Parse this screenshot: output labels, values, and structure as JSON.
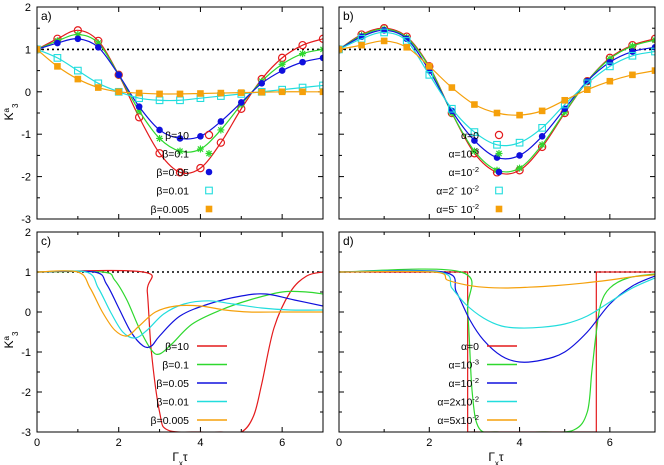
{
  "figure": {
    "ylabel_main": "K",
    "ylabel_sup": "a",
    "ylabel_sub": "3",
    "xlabel_main": "Γ",
    "xlabel_sub": "x",
    "xlabel_tail": "τ"
  },
  "chart_data": [
    {
      "panel": "a)",
      "type": "line+scatter",
      "xlim": [
        0,
        7
      ],
      "ylim": [
        -3,
        2
      ],
      "xticks": [],
      "yticks": [
        "-3",
        "-2",
        "-1",
        "0",
        "1",
        "2"
      ],
      "reference_line": 1,
      "legend_position": "bottom-center",
      "series": [
        {
          "name": "β=10",
          "color": "#e41a1c",
          "marker": "circle-open",
          "x": [
            0,
            0.5,
            1,
            1.5,
            2,
            2.5,
            3,
            3.5,
            4,
            4.5,
            5,
            5.5,
            6,
            6.5,
            7
          ],
          "y": [
            1.0,
            1.25,
            1.45,
            1.2,
            0.4,
            -0.6,
            -1.45,
            -1.9,
            -1.8,
            -1.2,
            -0.4,
            0.3,
            0.8,
            1.1,
            1.25
          ]
        },
        {
          "name": "β=0.1",
          "color": "#2ed82e",
          "marker": "star",
          "x": [
            0,
            0.5,
            1,
            1.5,
            2,
            2.5,
            3,
            3.5,
            4,
            4.5,
            5,
            5.5,
            6,
            6.5,
            7
          ],
          "y": [
            1.0,
            1.2,
            1.35,
            1.15,
            0.4,
            -0.45,
            -1.1,
            -1.4,
            -1.35,
            -0.9,
            -0.3,
            0.25,
            0.65,
            0.9,
            1.0
          ]
        },
        {
          "name": "β=0.05",
          "color": "#1010dd",
          "marker": "circle-filled",
          "x": [
            0,
            0.5,
            1,
            1.5,
            2,
            2.5,
            3,
            3.5,
            4,
            4.5,
            5,
            5.5,
            6,
            6.5,
            7
          ],
          "y": [
            1.0,
            1.15,
            1.25,
            1.05,
            0.4,
            -0.35,
            -0.9,
            -1.1,
            -1.05,
            -0.7,
            -0.25,
            0.2,
            0.5,
            0.7,
            0.8
          ]
        },
        {
          "name": "β=0.01",
          "color": "#22dddd",
          "marker": "square-open",
          "x": [
            0,
            0.5,
            1,
            1.5,
            2,
            2.5,
            3,
            3.5,
            4,
            4.5,
            5,
            5.5,
            6,
            6.5,
            7
          ],
          "y": [
            1.0,
            0.8,
            0.5,
            0.2,
            0.0,
            -0.15,
            -0.2,
            -0.2,
            -0.15,
            -0.1,
            -0.05,
            0.0,
            0.05,
            0.1,
            0.15
          ]
        },
        {
          "name": "β=0.005",
          "color": "#f5a00a",
          "marker": "square-filled",
          "x": [
            0,
            0.5,
            1,
            1.5,
            2,
            2.5,
            3,
            3.5,
            4,
            4.5,
            5,
            5.5,
            6,
            6.5,
            7
          ],
          "y": [
            1.0,
            0.6,
            0.3,
            0.1,
            0.0,
            -0.03,
            -0.05,
            -0.05,
            -0.04,
            -0.03,
            -0.02,
            -0.01,
            0.0,
            0.0,
            0.0
          ]
        }
      ]
    },
    {
      "panel": "b)",
      "type": "line+scatter",
      "xlim": [
        0,
        7
      ],
      "ylim": [
        -3,
        2
      ],
      "xticks": [],
      "yticks": [],
      "reference_line": 1,
      "legend_position": "bottom-center",
      "series": [
        {
          "name": "α=0",
          "color": "#e41a1c",
          "marker": "circle-open",
          "x": [
            0,
            0.5,
            1,
            1.5,
            2,
            2.5,
            3,
            3.5,
            4,
            4.5,
            5,
            5.5,
            6,
            6.5,
            7
          ],
          "y": [
            1.0,
            1.35,
            1.5,
            1.3,
            0.6,
            -0.5,
            -1.45,
            -1.9,
            -1.85,
            -1.3,
            -0.5,
            0.25,
            0.8,
            1.1,
            1.25
          ]
        },
        {
          "name": "α=10",
          "sup": "-3",
          "color": "#2ed82e",
          "marker": "star",
          "x": [
            0,
            0.5,
            1,
            1.5,
            2,
            2.5,
            3,
            3.5,
            4,
            4.5,
            5,
            5.5,
            6,
            6.5,
            7
          ],
          "y": [
            1.0,
            1.33,
            1.48,
            1.28,
            0.58,
            -0.5,
            -1.4,
            -1.85,
            -1.8,
            -1.25,
            -0.48,
            0.25,
            0.78,
            1.08,
            1.22
          ]
        },
        {
          "name": "α=10",
          "sup": "-2",
          "color": "#1010dd",
          "marker": "circle-filled",
          "x": [
            0,
            0.5,
            1,
            1.5,
            2,
            2.5,
            3,
            3.5,
            4,
            4.5,
            5,
            5.5,
            6,
            6.5,
            7
          ],
          "y": [
            1.0,
            1.3,
            1.45,
            1.25,
            0.5,
            -0.45,
            -1.15,
            -1.55,
            -1.5,
            -1.05,
            -0.4,
            0.25,
            0.7,
            0.95,
            1.05
          ]
        },
        {
          "name": "α=2ˉ 10",
          "sup": "-2",
          "color": "#22dddd",
          "marker": "square-open",
          "x": [
            0,
            0.5,
            1,
            1.5,
            2,
            2.5,
            3,
            3.5,
            4,
            4.5,
            5,
            5.5,
            6,
            6.5,
            7
          ],
          "y": [
            1.0,
            1.25,
            1.4,
            1.2,
            0.4,
            -0.4,
            -0.95,
            -1.25,
            -1.2,
            -0.85,
            -0.3,
            0.2,
            0.6,
            0.85,
            0.95
          ]
        },
        {
          "name": "α=5ˉ 10",
          "sup": "-2",
          "color": "#f5a00a",
          "marker": "square-filled",
          "x": [
            0,
            0.5,
            1,
            1.5,
            2,
            2.5,
            3,
            3.5,
            4,
            4.5,
            5,
            5.5,
            6,
            6.5,
            7
          ],
          "y": [
            1.0,
            1.1,
            1.2,
            1.05,
            0.6,
            0.1,
            -0.3,
            -0.5,
            -0.55,
            -0.45,
            -0.2,
            0.05,
            0.25,
            0.4,
            0.5
          ]
        }
      ]
    },
    {
      "panel": "c)",
      "type": "line",
      "xlim": [
        0,
        7
      ],
      "ylim": [
        -3,
        2
      ],
      "xticks": [
        "0",
        "2",
        "4",
        "6"
      ],
      "yticks": [
        "-3",
        "-2",
        "-1",
        "0",
        "1",
        "2"
      ],
      "reference_line": 1,
      "legend_position": "bottom-center",
      "series": [
        {
          "name": "β=10",
          "color": "#e41a1c",
          "x": [
            0,
            2.6,
            2.7,
            2.8,
            3.0,
            3.2,
            4.0,
            4.5,
            5.0,
            5.3,
            5.5,
            5.8,
            6.2,
            6.6,
            7
          ],
          "y": [
            1,
            1,
            0.5,
            -1.0,
            -2.5,
            -2.95,
            -3.0,
            -3.0,
            -3.0,
            -2.6,
            -1.8,
            -0.4,
            0.5,
            0.9,
            1.0
          ]
        },
        {
          "name": "β=0.1",
          "color": "#2ed82e",
          "x": [
            0,
            1.6,
            1.9,
            2.2,
            2.5,
            2.8,
            3.0,
            3.3,
            3.8,
            4.5,
            5.2,
            6.0,
            6.6,
            7
          ],
          "y": [
            1,
            1,
            0.8,
            0.3,
            -0.4,
            -0.95,
            -1.05,
            -0.8,
            -0.3,
            0.05,
            0.3,
            0.5,
            0.5,
            0.45
          ]
        },
        {
          "name": "β=0.05",
          "color": "#1010dd",
          "x": [
            0,
            1.4,
            1.7,
            2.0,
            2.3,
            2.6,
            2.8,
            3.0,
            3.5,
            4.2,
            5.0,
            5.6,
            6.3,
            7
          ],
          "y": [
            1,
            1,
            0.7,
            0.1,
            -0.5,
            -0.85,
            -0.85,
            -0.6,
            -0.1,
            0.2,
            0.4,
            0.45,
            0.3,
            0.15
          ]
        },
        {
          "name": "β=0.01",
          "color": "#22dddd",
          "x": [
            0,
            1.2,
            1.5,
            1.8,
            2.1,
            2.4,
            2.7,
            3.1,
            3.6,
            4.2,
            4.8,
            5.5,
            6.2,
            7
          ],
          "y": [
            1,
            1,
            0.6,
            0.0,
            -0.5,
            -0.65,
            -0.45,
            -0.05,
            0.2,
            0.28,
            0.2,
            0.1,
            0.05,
            0.05
          ]
        },
        {
          "name": "β=0.005",
          "color": "#f5a00a",
          "x": [
            0,
            1.0,
            1.3,
            1.6,
            1.9,
            2.2,
            2.5,
            2.9,
            3.4,
            4.0,
            4.6,
            5.2,
            6.0,
            7
          ],
          "y": [
            1,
            1,
            0.6,
            0.0,
            -0.45,
            -0.6,
            -0.35,
            0.0,
            0.15,
            0.15,
            0.05,
            0.0,
            0.0,
            0.0
          ]
        }
      ]
    },
    {
      "panel": "d)",
      "type": "line",
      "xlim": [
        0,
        7
      ],
      "ylim": [
        -3,
        2
      ],
      "xticks": [
        "0",
        "2",
        "4",
        "6"
      ],
      "yticks": [],
      "reference_line": 1,
      "legend_position": "bottom-center",
      "series": [
        {
          "name": "α=0",
          "color": "#e41a1c",
          "x": [
            0,
            2.85,
            2.85,
            5.7,
            5.7,
            7
          ],
          "y": [
            1,
            1,
            -3,
            -3,
            1,
            1
          ]
        },
        {
          "name": "α=10",
          "sup": "-3",
          "color": "#2ed82e",
          "x": [
            0,
            2.7,
            2.85,
            2.95,
            3.1,
            3.5,
            4.5,
            5.2,
            5.5,
            5.6,
            5.7,
            5.8,
            6.0,
            6.4,
            7
          ],
          "y": [
            1,
            1,
            0.0,
            -2.0,
            -2.9,
            -3.0,
            -3.0,
            -2.95,
            -2.5,
            -1.5,
            -0.5,
            0.2,
            0.6,
            0.85,
            0.95
          ]
        },
        {
          "name": "α=10",
          "sup": "-2",
          "color": "#1010dd",
          "x": [
            0,
            2.3,
            2.6,
            2.9,
            3.2,
            3.6,
            4.0,
            4.5,
            5.0,
            5.5,
            6.0,
            6.5,
            7
          ],
          "y": [
            1,
            1,
            0.5,
            -0.2,
            -0.7,
            -1.1,
            -1.25,
            -1.2,
            -1.0,
            -0.5,
            0.2,
            0.65,
            0.9
          ]
        },
        {
          "name": "α=2x10",
          "sup": "-2",
          "color": "#22dddd",
          "x": [
            0,
            2.2,
            2.5,
            2.8,
            3.2,
            3.6,
            4.0,
            4.5,
            5.0,
            5.5,
            6.0,
            6.5,
            7
          ],
          "y": [
            1,
            1,
            0.6,
            0.2,
            -0.15,
            -0.35,
            -0.4,
            -0.38,
            -0.3,
            -0.1,
            0.25,
            0.6,
            0.85
          ]
        },
        {
          "name": "α=5x10",
          "sup": "-2",
          "color": "#f5a00a",
          "x": [
            0,
            2.1,
            2.4,
            2.8,
            3.2,
            3.7,
            4.2,
            4.8,
            5.4,
            6.0,
            6.5,
            7
          ],
          "y": [
            1,
            1,
            0.8,
            0.68,
            0.62,
            0.6,
            0.62,
            0.66,
            0.72,
            0.8,
            0.88,
            0.93
          ]
        }
      ]
    }
  ]
}
